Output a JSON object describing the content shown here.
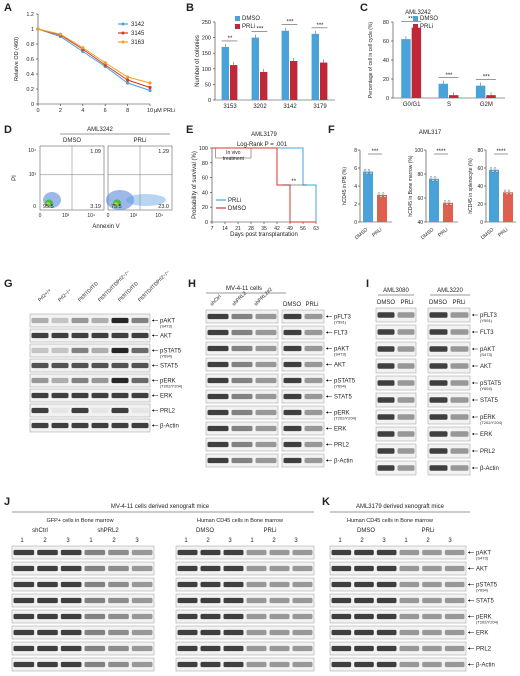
{
  "panels": {
    "A": {
      "label": "A",
      "ylabel": "Relative OD (460)",
      "xlabel": "µM PRLi",
      "legend": [
        "3142",
        "3145",
        "3163"
      ],
      "chart_data": {
        "type": "line",
        "x": [
          0,
          2,
          4,
          6,
          8,
          10
        ],
        "series": [
          {
            "name": "3142",
            "values": [
              1.0,
              0.9,
              0.7,
              0.5,
              0.28,
              0.18
            ]
          },
          {
            "name": "3145",
            "values": [
              1.0,
              0.92,
              0.73,
              0.52,
              0.32,
              0.22
            ]
          },
          {
            "name": "3163",
            "values": [
              1.0,
              0.93,
              0.75,
              0.55,
              0.36,
              0.28
            ]
          }
        ],
        "ylim": [
          0,
          1.2
        ],
        "yticks": [
          "0",
          "0.2",
          "0.4",
          "0.6",
          "0.8",
          "1",
          "1.2"
        ],
        "xticks": [
          "0",
          "2",
          "4",
          "6",
          "8",
          "10"
        ],
        "colors": [
          "#4aa3d8",
          "#d6392a",
          "#f0a020"
        ]
      }
    },
    "B": {
      "label": "B",
      "ylabel": "Number of colonies",
      "legend": [
        "DMSO",
        "PRLi"
      ],
      "chart_data": {
        "type": "bar",
        "categories": [
          "3153",
          "3202",
          "3142",
          "3179"
        ],
        "series": [
          {
            "name": "DMSO",
            "values": [
              170,
              200,
              222,
              212
            ]
          },
          {
            "name": "PRLi",
            "values": [
              112,
              90,
              125,
              120
            ]
          }
        ],
        "ylim": [
          0,
          250
        ],
        "yticks": [
          "0",
          "50",
          "100",
          "150",
          "200",
          "250"
        ],
        "sig": [
          "**",
          "***",
          "***",
          "***"
        ],
        "colors": [
          "#4aa3d8",
          "#c0283a"
        ]
      }
    },
    "C": {
      "label": "C",
      "title": "AML3242",
      "ylabel": "Percentage of cell in cell cycle (%)",
      "legend": [
        "DMSO",
        "PRLi"
      ],
      "chart_data": {
        "type": "bar",
        "categories": [
          "G0/G1",
          "S",
          "G2M"
        ],
        "series": [
          {
            "name": "DMSO",
            "values": [
              62,
              15,
              13
            ]
          },
          {
            "name": "PRLi",
            "values": [
              74,
              3,
              3
            ]
          }
        ],
        "ylim": [
          0,
          80
        ],
        "yticks": [
          "0",
          "20",
          "40",
          "60",
          "80"
        ],
        "sig": [
          "***",
          "***",
          "***"
        ],
        "colors": [
          "#4aa3d8",
          "#c0283a"
        ]
      }
    },
    "D": {
      "label": "D",
      "title": "AML3242",
      "ylabel": "PI",
      "xlabel": "Annexin V",
      "groups": [
        "DMSO",
        "PRLi"
      ],
      "quads": {
        "dmso": [
          "1.09",
          "95.5",
          "3.19"
        ],
        "prli": [
          "1.29",
          "75.5",
          "23.0"
        ]
      },
      "ticks": [
        "0",
        "10³",
        "10⁴"
      ],
      "yticks": [
        "10⁴",
        "10³",
        "0"
      ]
    },
    "E": {
      "label": "E",
      "title": "AML3179",
      "ylabel": "Probability of survival (%)",
      "xlabel": "Days post transplantation",
      "stat": "Log-Rank P = .001",
      "note": [
        "In vivo",
        "treatment"
      ],
      "sig": "**",
      "legend": [
        "PRLi",
        "DMSO"
      ],
      "chart_data": {
        "type": "line",
        "x": [
          7,
          14,
          21,
          28,
          35,
          42,
          49,
          56,
          63
        ],
        "series": [
          {
            "name": "PRLi",
            "values": [
              100,
              100,
              100,
              100,
              100,
              100,
              100,
              50,
              0
            ]
          },
          {
            "name": "DMSO",
            "values": [
              100,
              100,
              100,
              100,
              100,
              50,
              0,
              0,
              0
            ]
          }
        ],
        "ylim": [
          0,
          100
        ],
        "yticks": [
          "0",
          "20",
          "40",
          "60",
          "80",
          "100"
        ],
        "xticks": [
          "7",
          "14",
          "21",
          "28",
          "35",
          "42",
          "49",
          "56",
          "63"
        ],
        "colors": [
          "#4aa3d8",
          "#d6392a"
        ]
      }
    },
    "F": {
      "label": "F",
      "title": "AML317",
      "chart_data": [
        {
          "type": "bar",
          "categories": [
            "DMSO",
            "PRLi"
          ],
          "values": [
            5.6,
            3.0
          ],
          "ylabel": "hCD45 in PB (%)",
          "ylim": [
            0,
            8
          ],
          "yticks": [
            "0",
            "2",
            "4",
            "6",
            "8"
          ],
          "sig": "***"
        },
        {
          "type": "bar",
          "categories": [
            "DMSO",
            "PRLi"
          ],
          "values": [
            76,
            56
          ],
          "ylabel": "hCD45 in Bone marrow (%)",
          "ylim": [
            40,
            100
          ],
          "yticks": [
            "40",
            "60",
            "80",
            "100"
          ],
          "sig": "****"
        },
        {
          "type": "bar",
          "categories": [
            "DMSO",
            "PRLi"
          ],
          "values": [
            58,
            33
          ],
          "ylabel": "hCD45 in splenocyte (%)",
          "ylim": [
            0,
            80
          ],
          "yticks": [
            "0",
            "20",
            "40",
            "60",
            "80"
          ],
          "sig": "****"
        }
      ]
    }
  },
  "G": {
    "label": "G",
    "lanes": [
      "Prl2+/+",
      "Prl2−/−",
      "Flt3ITD/ITD",
      "Flt3ITD/ITDPrl2−/−",
      "Flt3ITD/ITD",
      "Flt3ITD/ITDPrl2−/−"
    ],
    "proteins": [
      "pAKT",
      "(S473)",
      "AKT",
      "pSTAT5",
      "(Y694)",
      "STAT5",
      "pERK",
      "(T202/Y204)",
      "ERK",
      "PRL2",
      "β-Actin"
    ]
  },
  "H": {
    "label": "H",
    "title": "MV-4-11 cells",
    "lanes1": [
      "shCtrl",
      "shPRL2",
      "shPRL2#2"
    ],
    "lanes2": [
      "DMSO",
      "PRLi"
    ],
    "proteins": [
      "pFLT3",
      "(Y591)",
      "FLT3",
      "pAKT",
      "(S473)",
      "AKT",
      "pSTAT5",
      "(Y694)",
      "STAT5",
      "pERK",
      "(T202/Y204)",
      "ERK",
      "PRL2",
      "β-Actin"
    ]
  },
  "I": {
    "label": "I",
    "groups": [
      "AML3080",
      "AML3220"
    ],
    "lanes": [
      "DMSO",
      "PRLi",
      "DMSO",
      "PRLi"
    ],
    "proteins": [
      "pFLT3",
      "(Y591)",
      "FLT3",
      "pAKT",
      "(S473)",
      "AKT",
      "pSTAT5",
      "(Y694)",
      "STAT5",
      "pERK",
      "(T202/Y204)",
      "ERK",
      "PRL2",
      "β-Actin"
    ]
  },
  "J": {
    "label": "J",
    "title": "MV-4-11 cells derived xenograft mice",
    "sub1": "GFP+ cells in Bone marrow",
    "sub2": "Human CD45 cells in Bone marrow",
    "g1": [
      "shCtrl",
      "shPRL2"
    ],
    "g2": [
      "DMSO",
      "PRLi"
    ],
    "lanes": [
      "1",
      "2",
      "3",
      "1",
      "2",
      "3"
    ]
  },
  "K": {
    "label": "K",
    "title": "AML3179 derived xenograft mice",
    "sub": "Human CD45 cells in Bone marrow",
    "g": [
      "DMSO",
      "PRLi"
    ],
    "lanes": [
      "1",
      "2",
      "3",
      "1",
      "2",
      "3"
    ],
    "proteins": [
      "pAKT",
      "(S473)",
      "AKT",
      "pSTAT5",
      "(Y694)",
      "STAT5",
      "pERK",
      "(T202/Y204)",
      "ERK",
      "PRL2",
      "β-Actin"
    ]
  }
}
